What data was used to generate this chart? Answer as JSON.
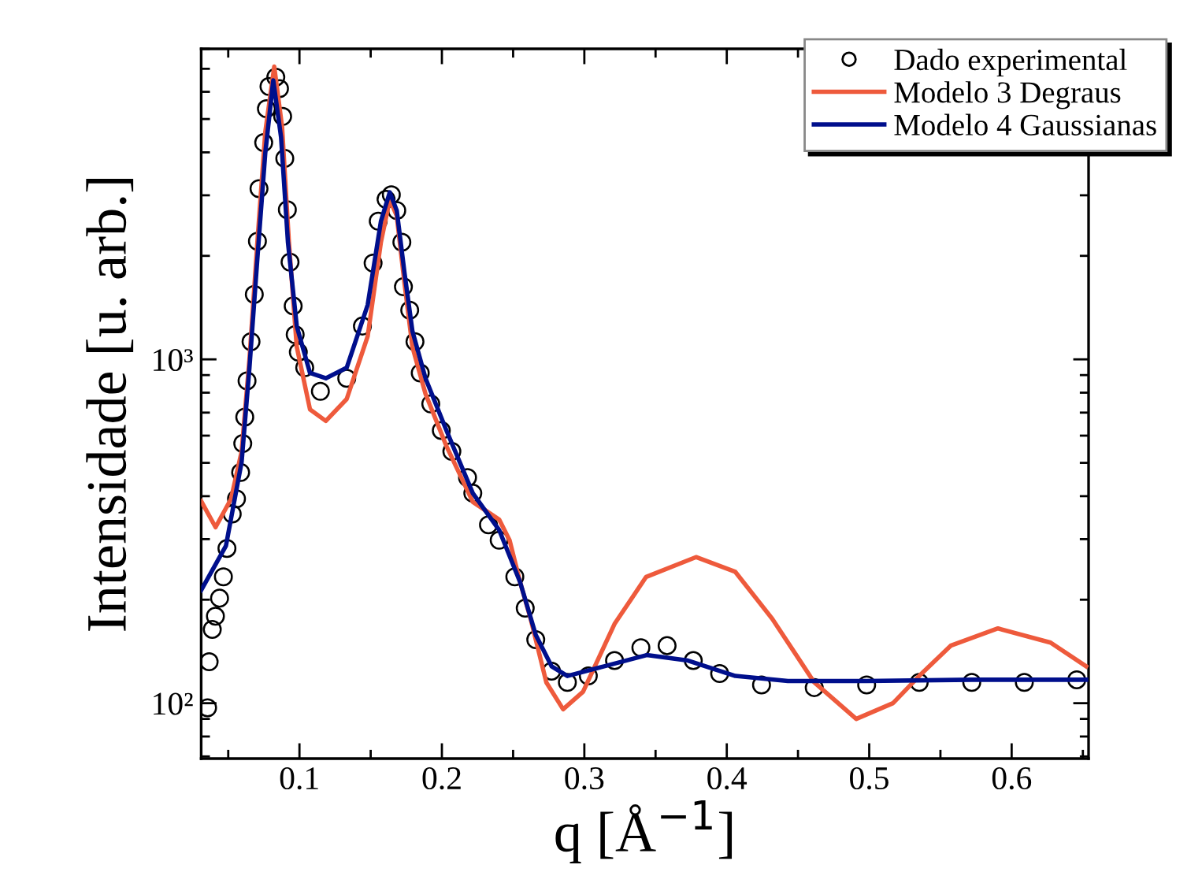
{
  "chart_data": {
    "type": "line",
    "xlabel": "q [Å$^{−1}$]",
    "ylabel": "Intensidade [u. arb.]",
    "log": "y",
    "xlim": [
      0.031,
      0.654
    ],
    "ylim": [
      69,
      8000
    ],
    "xticks": [
      {
        "value": 0.05,
        "label": null
      },
      0.1,
      {
        "value": 0.15,
        "label": null
      },
      0.2,
      {
        "value": 0.25,
        "label": null
      },
      0.3,
      {
        "value": 0.35,
        "label": null
      },
      0.4,
      {
        "value": 0.45,
        "label": null
      },
      0.5,
      {
        "value": 0.55,
        "label": null
      },
      0.6,
      {
        "value": 0.65,
        "label": null
      }
    ],
    "yticks": [
      {
        "value": 100,
        "label": "10²"
      },
      {
        "value": 1000,
        "label": "10³"
      }
    ],
    "grid": false,
    "legend": "top right",
    "series": [
      {
        "name": "Dado experimental",
        "type": "scatter",
        "marker": "circle",
        "color": "#000000",
        "x": [
          0.0355,
          0.0366,
          0.0388,
          0.041,
          0.0439,
          0.0466,
          0.0491,
          0.0528,
          0.0558,
          0.0587,
          0.0602,
          0.0616,
          0.0632,
          0.066,
          0.0683,
          0.0705,
          0.0716,
          0.0749,
          0.0768,
          0.0786,
          0.0834,
          0.086,
          0.0882,
          0.0897,
          0.0915,
          0.0934,
          0.0956,
          0.097,
          0.0992,
          0.1037,
          0.1147,
          0.1332,
          0.1442,
          0.1517,
          0.1553,
          0.1608,
          0.1645,
          0.1683,
          0.1719,
          0.173,
          0.1774,
          0.1811,
          0.1848,
          0.1922,
          0.1996,
          0.207,
          0.218,
          0.2217,
          0.2327,
          0.2402,
          0.2512,
          0.2585,
          0.2659,
          0.277,
          0.2881,
          0.3028,
          0.3212,
          0.3397,
          0.3581,
          0.3765,
          0.395,
          0.4244,
          0.4614,
          0.4982,
          0.5351,
          0.572,
          0.6089,
          0.6457
        ],
        "values": [
          97,
          132,
          164,
          179,
          202,
          233,
          282,
          355,
          393,
          469,
          569,
          679,
          866,
          1126,
          1544,
          2206,
          3135,
          4270,
          5360,
          6220,
          6620,
          6130,
          5090,
          3840,
          2725,
          1918,
          1430,
          1180,
          1050,
          946,
          807,
          881,
          1250,
          1906,
          2522,
          2920,
          3010,
          2710,
          2192,
          1627,
          1390,
          1126,
          913,
          742,
          621,
          540,
          453,
          408,
          330,
          298,
          233,
          189,
          153,
          124,
          115,
          120,
          133,
          145,
          147,
          133,
          122,
          113,
          111,
          113,
          115,
          115,
          115,
          117
        ]
      },
      {
        "name": "Modelo 3 Degraus",
        "color": "#ee5a3c",
        "x": [
          0.031,
          0.0411,
          0.052,
          0.0594,
          0.0649,
          0.0705,
          0.076,
          0.0823,
          0.0878,
          0.0926,
          0.0981,
          0.1074,
          0.1185,
          0.1332,
          0.1479,
          0.1572,
          0.1634,
          0.1683,
          0.1738,
          0.1793,
          0.1885,
          0.2032,
          0.2217,
          0.2402,
          0.2475,
          0.2549,
          0.2623,
          0.2733,
          0.2851,
          0.2991,
          0.3212,
          0.3434,
          0.3784,
          0.406,
          0.4319,
          0.4614,
          0.4909,
          0.5167,
          0.5351,
          0.5572,
          0.5904,
          0.6273,
          0.6523
        ],
        "values": [
          387,
          325,
          393,
          540,
          1003,
          2206,
          4580,
          7100,
          4740,
          2192,
          1088,
          715,
          662,
          767,
          1167,
          2192,
          2920,
          2614,
          1657,
          1088,
          794,
          559,
          385,
          342,
          298,
          225,
          176,
          115,
          96,
          108,
          170,
          233,
          266,
          241,
          176,
          115,
          90,
          100,
          120,
          147,
          165,
          150,
          128
        ]
      },
      {
        "name": "Modelo 4 Gaussianas",
        "color": "#000f8c",
        "x": [
          0.031,
          0.0484,
          0.0594,
          0.0649,
          0.0705,
          0.076,
          0.0816,
          0.0871,
          0.0919,
          0.0981,
          0.1074,
          0.1185,
          0.1332,
          0.1479,
          0.1572,
          0.1634,
          0.1683,
          0.1738,
          0.1793,
          0.1885,
          0.2032,
          0.2217,
          0.2402,
          0.2549,
          0.2659,
          0.277,
          0.2881,
          0.3139,
          0.3438,
          0.3728,
          0.406,
          0.4429,
          0.4982,
          0.572,
          0.6523
        ],
        "values": [
          213,
          287,
          503,
          946,
          1975,
          3980,
          6480,
          4420,
          2192,
          1250,
          913,
          881,
          946,
          1440,
          2522,
          3060,
          2710,
          1778,
          1208,
          881,
          621,
          408,
          319,
          225,
          158,
          128,
          120,
          128,
          138,
          133,
          120,
          116,
          116,
          117,
          117
        ]
      }
    ]
  }
}
